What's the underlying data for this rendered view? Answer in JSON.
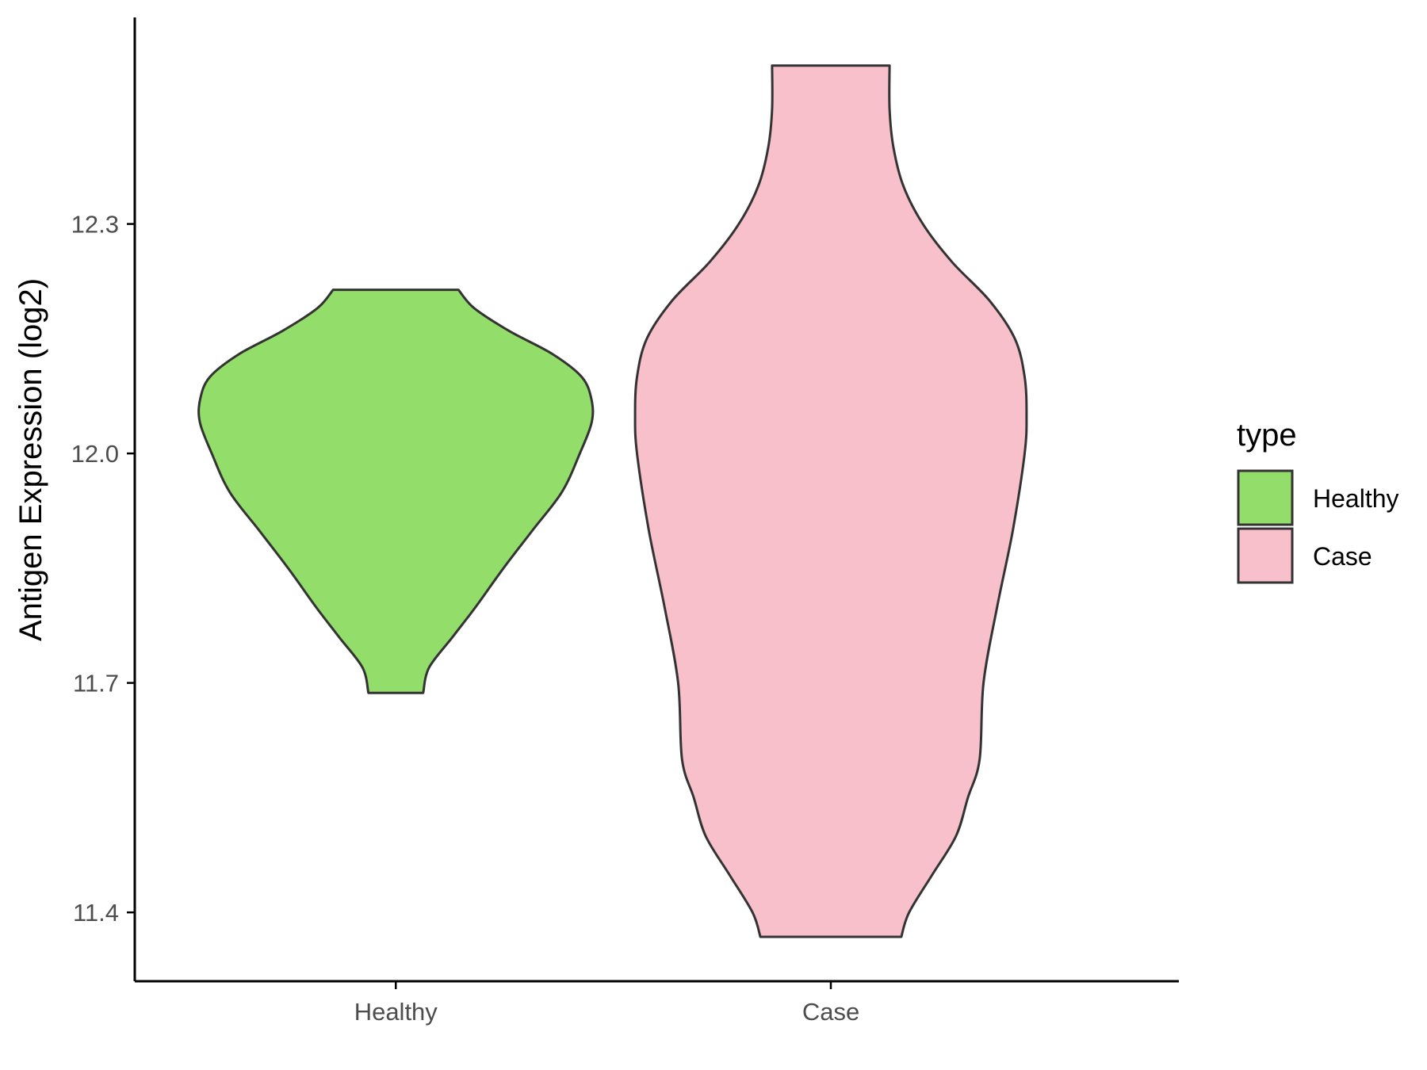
{
  "chart_data": {
    "type": "violin",
    "title": "",
    "xlabel": "",
    "ylabel": "Antigen Expression (log2)",
    "categories": [
      "Healthy",
      "Case"
    ],
    "ylim": [
      11.31,
      12.57
    ],
    "yticks": [
      11.4,
      11.7,
      12.0,
      12.3
    ],
    "ytick_labels": [
      "11.4",
      "11.7",
      "12.0",
      "12.3"
    ],
    "grid": false,
    "legend": {
      "title": "type",
      "position": "right",
      "entries": [
        {
          "label": "Healthy",
          "color": "#93dd6a"
        },
        {
          "label": "Case",
          "color": "#f7c0cb"
        }
      ]
    },
    "series": [
      {
        "name": "Healthy",
        "color": "#93dd6a",
        "min": 11.687,
        "max": 12.214,
        "density_profile": [
          [
            11.687,
            0.14
          ],
          [
            11.72,
            0.17
          ],
          [
            11.76,
            0.29
          ],
          [
            11.8,
            0.41
          ],
          [
            11.85,
            0.55
          ],
          [
            11.9,
            0.7
          ],
          [
            11.95,
            0.85
          ],
          [
            12.0,
            0.94
          ],
          [
            12.04,
            1.0
          ],
          [
            12.07,
            1.0
          ],
          [
            12.1,
            0.95
          ],
          [
            12.13,
            0.8
          ],
          [
            12.16,
            0.58
          ],
          [
            12.19,
            0.4
          ],
          [
            12.214,
            0.32
          ]
        ]
      },
      {
        "name": "Case",
        "color": "#f7c0cb",
        "min": 11.368,
        "max": 12.507,
        "density_profile": [
          [
            11.368,
            0.36
          ],
          [
            11.4,
            0.4
          ],
          [
            11.45,
            0.52
          ],
          [
            11.5,
            0.64
          ],
          [
            11.55,
            0.7
          ],
          [
            11.6,
            0.76
          ],
          [
            11.7,
            0.78
          ],
          [
            11.8,
            0.85
          ],
          [
            11.9,
            0.93
          ],
          [
            12.0,
            0.99
          ],
          [
            12.05,
            1.0
          ],
          [
            12.1,
            0.99
          ],
          [
            12.15,
            0.94
          ],
          [
            12.2,
            0.81
          ],
          [
            12.25,
            0.62
          ],
          [
            12.3,
            0.47
          ],
          [
            12.35,
            0.37
          ],
          [
            12.4,
            0.32
          ],
          [
            12.45,
            0.3
          ],
          [
            12.507,
            0.3
          ]
        ]
      }
    ]
  }
}
